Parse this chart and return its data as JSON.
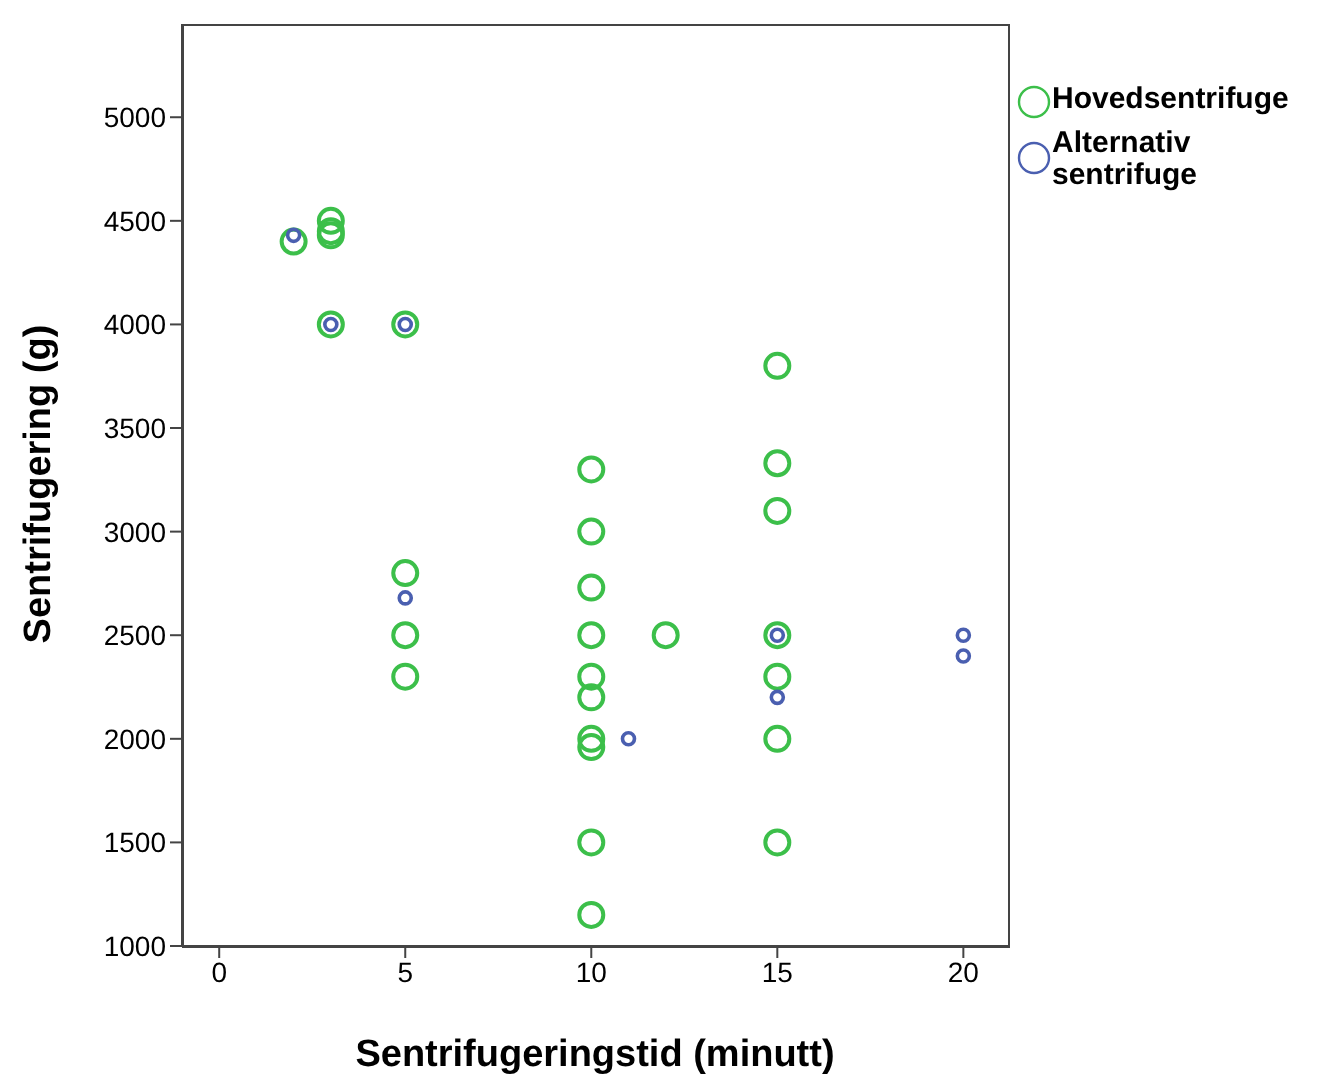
{
  "chart_data": {
    "type": "scatter",
    "xlabel": "Sentrifugeringstid (minutt)",
    "ylabel": "Sentrifugering (g)",
    "xlim": [
      -1,
      21.2
    ],
    "xticks": [
      0,
      5,
      10,
      15,
      20
    ],
    "ylim": [
      1000,
      5450
    ],
    "yticks": [
      1000,
      1500,
      2000,
      2500,
      3000,
      3500,
      4000,
      4500,
      5000
    ],
    "grid": false,
    "legend": "top right",
    "marker": "circle",
    "series": [
      {
        "name": "Hovedsentrifuge",
        "color": "#3cbf4a",
        "x": [
          2,
          3,
          3,
          3,
          3,
          5,
          5,
          5,
          5,
          10,
          10,
          10,
          10,
          10,
          10,
          10,
          10,
          10,
          10,
          12,
          15,
          15,
          15,
          15,
          15,
          15,
          15
        ],
        "values": [
          4400,
          4500,
          4450,
          4430,
          4000,
          4000,
          2800,
          2500,
          2300,
          3300,
          3000,
          2730,
          2500,
          2300,
          2200,
          2000,
          1960,
          1500,
          1150,
          2500,
          3800,
          3330,
          3100,
          2500,
          2300,
          2000,
          1500
        ]
      },
      {
        "name": "Alternativ sentrifuge",
        "color": "#4a5fb0",
        "x": [
          2,
          3,
          5,
          5,
          11,
          15,
          15,
          20,
          20
        ],
        "values": [
          4430,
          4000,
          4000,
          2680,
          2000,
          2500,
          2200,
          2500,
          2400
        ]
      }
    ]
  }
}
